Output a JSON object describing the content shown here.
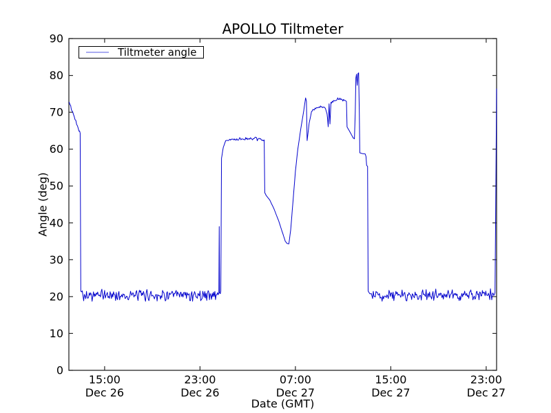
{
  "figure": {
    "title": "APOLLO Tiltmeter",
    "xlabel": "Date (GMT)",
    "ylabel": "Angle (deg)",
    "legend": {
      "label": "Tiltmeter angle",
      "sample_color": "#a9abf0"
    }
  },
  "chart_data": {
    "type": "line",
    "title": "APOLLO Tiltmeter",
    "xlabel": "Date (GMT)",
    "ylabel": "Angle (deg)",
    "ylim": [
      0,
      90
    ],
    "y_ticks": [
      0,
      10,
      20,
      30,
      40,
      50,
      60,
      70,
      80,
      90
    ],
    "x_range_hours": [
      0,
      35.87
    ],
    "x_ticks": [
      {
        "t": 3,
        "time": "15:00",
        "date": "Dec 26"
      },
      {
        "t": 11,
        "time": "23:00",
        "date": "Dec 26"
      },
      {
        "t": 19,
        "time": "07:00",
        "date": "Dec 27"
      },
      {
        "t": 27,
        "time": "15:00",
        "date": "Dec 27"
      },
      {
        "t": 35,
        "time": "23:00",
        "date": "Dec 27"
      }
    ],
    "legend_position": "upper left",
    "grid": false,
    "line_color": "#0000cc",
    "spine_color": "#262626",
    "series": [
      {
        "name": "Tiltmeter angle",
        "points_t_hours_angle_deg": [
          [
            0.02,
            72.8
          ],
          [
            0.1,
            72.0
          ],
          [
            0.25,
            70.5
          ],
          [
            0.45,
            68.8
          ],
          [
            0.65,
            67.0
          ],
          [
            0.85,
            65.3
          ],
          [
            0.95,
            64.6
          ],
          [
            1.0,
            21.5
          ],
          [
            1.3,
            20.3
          ],
          [
            3.0,
            20.4
          ],
          [
            5.0,
            20.3
          ],
          [
            7.0,
            20.4
          ],
          [
            9.0,
            20.3
          ],
          [
            11.0,
            20.4
          ],
          [
            12.3,
            20.4
          ],
          [
            12.52,
            20.5
          ],
          [
            12.58,
            21.0
          ],
          [
            12.61,
            39.0
          ],
          [
            12.64,
            21.0
          ],
          [
            12.7,
            20.8
          ],
          [
            12.74,
            21.5
          ],
          [
            12.8,
            57.5
          ],
          [
            12.95,
            60.5
          ],
          [
            13.15,
            62.3
          ],
          [
            13.5,
            62.6
          ],
          [
            14.2,
            62.7
          ],
          [
            15.0,
            62.8
          ],
          [
            15.8,
            62.7
          ],
          [
            16.3,
            62.6
          ],
          [
            16.38,
            62.5
          ],
          [
            16.43,
            48.2
          ],
          [
            16.55,
            47.4
          ],
          [
            16.85,
            46.2
          ],
          [
            17.2,
            43.8
          ],
          [
            17.6,
            40.5
          ],
          [
            17.95,
            37.0
          ],
          [
            18.15,
            35.0
          ],
          [
            18.3,
            34.4
          ],
          [
            18.45,
            34.3
          ],
          [
            18.6,
            38.0
          ],
          [
            18.8,
            46.0
          ],
          [
            19.0,
            54.0
          ],
          [
            19.2,
            60.0
          ],
          [
            19.45,
            65.5
          ],
          [
            19.7,
            70.5
          ],
          [
            19.85,
            73.9
          ],
          [
            19.92,
            73.0
          ],
          [
            19.98,
            62.3
          ],
          [
            20.15,
            67.0
          ],
          [
            20.35,
            70.2
          ],
          [
            20.7,
            71.0
          ],
          [
            21.1,
            71.5
          ],
          [
            21.45,
            71.2
          ],
          [
            21.65,
            70.0
          ],
          [
            21.75,
            66.3
          ],
          [
            21.82,
            72.4
          ],
          [
            21.9,
            67.0
          ],
          [
            21.98,
            72.6
          ],
          [
            22.2,
            73.0
          ],
          [
            22.55,
            73.5
          ],
          [
            22.85,
            73.4
          ],
          [
            23.1,
            73.2
          ],
          [
            23.28,
            72.9
          ],
          [
            23.33,
            66.0
          ],
          [
            23.55,
            64.8
          ],
          [
            23.85,
            63.0
          ],
          [
            23.95,
            62.8
          ],
          [
            24.02,
            70.0
          ],
          [
            24.07,
            79.3
          ],
          [
            24.12,
            80.3
          ],
          [
            24.18,
            77.3
          ],
          [
            24.24,
            80.5
          ],
          [
            24.3,
            80.7
          ],
          [
            24.36,
            70.0
          ],
          [
            24.4,
            59.0
          ],
          [
            24.6,
            58.8
          ],
          [
            24.85,
            58.7
          ],
          [
            24.92,
            58.0
          ],
          [
            24.97,
            55.6
          ],
          [
            25.05,
            55.3
          ],
          [
            25.1,
            21.5
          ],
          [
            25.3,
            20.4
          ],
          [
            26.5,
            20.3
          ],
          [
            28.0,
            20.4
          ],
          [
            29.5,
            20.3
          ],
          [
            31.0,
            20.4
          ],
          [
            32.5,
            20.3
          ],
          [
            34.0,
            20.4
          ],
          [
            35.3,
            20.4
          ],
          [
            35.68,
            20.5
          ],
          [
            35.74,
            21.0
          ],
          [
            35.87,
            76.4
          ]
        ],
        "noise_segments_t0_t1_amp_deg": [
          [
            0.02,
            0.95,
            0.4
          ],
          [
            1.05,
            12.5,
            1.15
          ],
          [
            13.3,
            16.3,
            0.35
          ],
          [
            20.4,
            23.25,
            0.3
          ],
          [
            25.3,
            35.65,
            1.15
          ]
        ]
      }
    ]
  }
}
